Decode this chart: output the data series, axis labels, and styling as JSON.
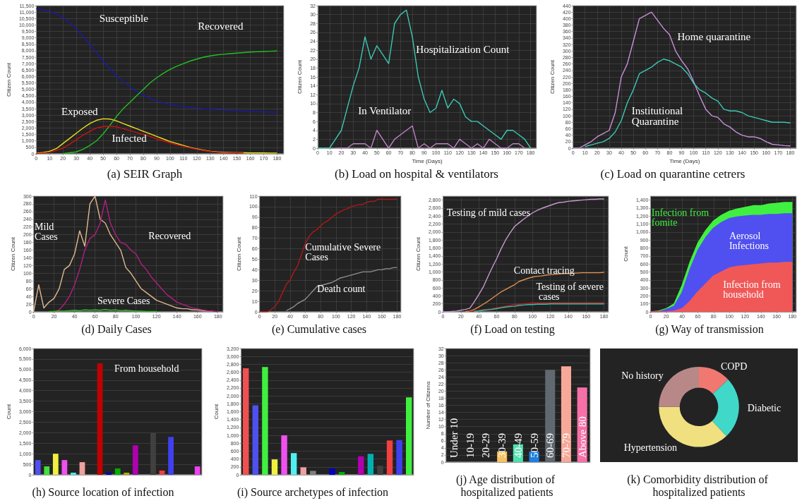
{
  "chart_data": [
    {
      "type": "line",
      "title": "(a) SEIR Graph",
      "ylabel": "Citizen Count",
      "grid": true,
      "x": [
        0,
        5,
        10,
        15,
        20,
        25,
        30,
        35,
        40,
        45,
        50,
        55,
        60,
        65,
        70,
        75,
        80,
        85,
        90,
        95,
        100,
        105,
        110,
        115,
        120,
        125,
        130,
        135,
        140,
        145,
        150,
        155,
        160,
        165,
        170,
        175,
        180
      ],
      "xlim": [
        0,
        185
      ],
      "xticks": [
        0,
        10,
        20,
        30,
        40,
        50,
        60,
        70,
        80,
        90,
        100,
        110,
        120,
        130,
        140,
        150,
        160,
        170,
        180
      ],
      "ylim": [
        0,
        11500
      ],
      "yticks": [
        0,
        500,
        {
          "value": 1000,
          "label": "1,000"
        },
        {
          "value": 1500,
          "label": "1,500"
        },
        {
          "value": 2000,
          "label": "2,000"
        },
        {
          "value": 2500,
          "label": "2,500"
        },
        {
          "value": 3000,
          "label": "3,000"
        },
        {
          "value": 3500,
          "label": "3,500"
        },
        {
          "value": 4000,
          "label": "4,000"
        },
        {
          "value": 4500,
          "label": "4,500"
        },
        {
          "value": 5000,
          "label": "5,000"
        },
        {
          "value": 5500,
          "label": "5,500"
        },
        {
          "value": 6000,
          "label": "6,000"
        },
        {
          "value": 6500,
          "label": "6,500"
        },
        {
          "value": 7000,
          "label": "7,000"
        },
        {
          "value": 7500,
          "label": "7,500"
        },
        {
          "value": 8000,
          "label": "8,000"
        },
        {
          "value": 8500,
          "label": "8,500"
        },
        {
          "value": 9000,
          "label": "9,000"
        },
        {
          "value": 9500,
          "label": "9,500"
        },
        {
          "value": 10000,
          "label": "10,000"
        },
        {
          "value": 10500,
          "label": "10,500"
        },
        {
          "value": 11000,
          "label": "11,000"
        },
        {
          "value": 11500,
          "label": "11,500"
        }
      ],
      "series": [
        {
          "name": "Susceptible",
          "color": "#1a1aa8",
          "values": [
            11250,
            11150,
            11050,
            10900,
            10550,
            10200,
            9700,
            9100,
            8500,
            7850,
            7200,
            6600,
            6050,
            5600,
            5200,
            4850,
            4550,
            4300,
            4100,
            3950,
            3850,
            3750,
            3650,
            3600,
            3550,
            3500,
            3450,
            3420,
            3400,
            3380,
            3350,
            3320,
            3300,
            3280,
            3260,
            3240,
            3220
          ]
        },
        {
          "name": "Recovered",
          "color": "#22c022",
          "values": [
            null,
            null,
            null,
            null,
            20,
            80,
            150,
            350,
            650,
            1000,
            1550,
            2200,
            2900,
            3500,
            4000,
            4500,
            5000,
            5500,
            5900,
            6250,
            6550,
            6800,
            7000,
            7200,
            7350,
            7500,
            7600,
            7680,
            7730,
            7780,
            7820,
            7860,
            7900,
            7920,
            7940,
            7960,
            7980
          ]
        },
        {
          "name": "Exposed",
          "color": "#e8e020",
          "values": [
            50,
            100,
            200,
            400,
            800,
            1200,
            1600,
            2000,
            2350,
            2600,
            2720,
            2700,
            2550,
            2350,
            2150,
            1950,
            1750,
            1550,
            1350,
            1150,
            950,
            800,
            650,
            500,
            380,
            280,
            200,
            150,
            120,
            100,
            90,
            80,
            70,
            70,
            70,
            60,
            60
          ]
        },
        {
          "name": "Infected",
          "color": "#cc1010",
          "values": [
            20,
            60,
            130,
            250,
            450,
            750,
            1100,
            1450,
            1750,
            2000,
            2120,
            2150,
            2100,
            1950,
            1800,
            1650,
            1500,
            1350,
            1150,
            1000,
            850,
            700,
            580,
            450,
            350,
            250,
            180,
            130,
            100,
            80,
            70,
            60,
            null,
            null,
            null,
            null,
            null
          ]
        }
      ]
    },
    {
      "type": "line",
      "title": "(b) Load on hospital & ventilators",
      "ylabel": "Citizen Count",
      "xlabel": "Time (Days)",
      "grid": true,
      "x": [
        0,
        5,
        10,
        15,
        20,
        25,
        30,
        35,
        40,
        45,
        50,
        55,
        60,
        65,
        70,
        75,
        80,
        85,
        90,
        95,
        100,
        105,
        110,
        115,
        120,
        125,
        130,
        135,
        140,
        145,
        150,
        155,
        160,
        165,
        170,
        175,
        180
      ],
      "xlim": [
        0,
        185
      ],
      "xticks": [
        0,
        10,
        20,
        30,
        40,
        50,
        60,
        70,
        80,
        90,
        100,
        110,
        120,
        130,
        140,
        150,
        160,
        170,
        180
      ],
      "ylim": [
        0,
        32
      ],
      "yticks": [
        0,
        2,
        4,
        6,
        8,
        10,
        12,
        14,
        16,
        18,
        20,
        22,
        24,
        26,
        28,
        30,
        32
      ],
      "series": [
        {
          "name": "Hospitalization Count",
          "color": "#3cc8b4",
          "values": [
            0,
            0,
            0,
            2,
            4,
            9,
            14,
            18,
            25,
            20,
            23,
            21,
            19,
            28,
            30,
            31,
            25,
            16,
            11,
            8,
            9,
            13,
            9,
            11,
            10,
            7,
            6,
            6,
            5,
            4,
            3,
            2,
            4,
            4,
            3,
            2,
            0
          ]
        },
        {
          "name": "In Ventilator",
          "color": "#c080c8",
          "values": [
            null,
            null,
            null,
            0,
            0,
            0,
            1,
            1,
            1,
            0,
            4,
            2,
            0,
            2,
            3,
            4,
            5,
            0,
            1,
            0,
            1,
            1,
            1,
            0,
            2,
            1,
            0,
            1,
            0,
            2,
            1,
            0,
            0,
            1,
            1,
            0,
            null
          ]
        }
      ]
    },
    {
      "type": "line",
      "title": "(c) Load on quarantine cetrers",
      "ylabel": "Citizen Count",
      "xlabel": "Time (Days)",
      "grid": true,
      "x": [
        0,
        5,
        10,
        15,
        20,
        25,
        30,
        35,
        40,
        45,
        50,
        55,
        60,
        65,
        70,
        75,
        80,
        85,
        90,
        95,
        100,
        105,
        110,
        115,
        120,
        125,
        130,
        135,
        140,
        145,
        150,
        155,
        160,
        165,
        170,
        175,
        180
      ],
      "xlim": [
        0,
        185
      ],
      "xticks": [
        0,
        10,
        20,
        30,
        40,
        50,
        60,
        70,
        80,
        90,
        100,
        110,
        120,
        130,
        140,
        150,
        160,
        170,
        180
      ],
      "ylim": [
        0,
        440
      ],
      "yticks": [
        0,
        20,
        40,
        60,
        80,
        100,
        120,
        140,
        160,
        180,
        200,
        220,
        240,
        260,
        280,
        300,
        320,
        340,
        360,
        380,
        400,
        420,
        440
      ],
      "series": [
        {
          "name": "Home quarantine",
          "color": "#c890d8",
          "values": [
            0,
            0,
            10,
            20,
            35,
            45,
            55,
            110,
            220,
            260,
            330,
            400,
            410,
            420,
            395,
            370,
            350,
            300,
            270,
            245,
            205,
            160,
            120,
            100,
            95,
            75,
            65,
            50,
            40,
            35,
            35,
            30,
            20,
            12,
            10,
            8,
            7
          ]
        },
        {
          "name": "Institutional Quarantine",
          "color": "#3cc8b4",
          "values": [
            null,
            null,
            5,
            10,
            15,
            20,
            30,
            50,
            85,
            140,
            180,
            230,
            240,
            250,
            265,
            275,
            270,
            260,
            250,
            230,
            200,
            180,
            170,
            155,
            145,
            120,
            115,
            115,
            110,
            100,
            95,
            90,
            85,
            80,
            80,
            80,
            78
          ]
        }
      ]
    },
    {
      "type": "line",
      "title": "(d) Daily Cases",
      "ylabel": "Citizen Count",
      "grid": true,
      "x": [
        0,
        5,
        10,
        15,
        20,
        25,
        30,
        35,
        40,
        45,
        50,
        55,
        60,
        65,
        70,
        75,
        80,
        85,
        90,
        95,
        100,
        105,
        110,
        115,
        120,
        125,
        130,
        135,
        140,
        145,
        150,
        155,
        160,
        165,
        170,
        175,
        180
      ],
      "xlim": [
        0,
        185
      ],
      "xticks": [
        0,
        20,
        40,
        60,
        80,
        100,
        120,
        140,
        160,
        180
      ],
      "ylim": [
        0,
        300
      ],
      "yticks": [
        0,
        20,
        40,
        60,
        80,
        100,
        120,
        140,
        160,
        180,
        200,
        220,
        240,
        260,
        280,
        300
      ],
      "series": [
        {
          "name": "Mild Cases",
          "color": "#e0b890",
          "values": [
            0,
            70,
            10,
            25,
            35,
            60,
            110,
            120,
            150,
            210,
            170,
            280,
            300,
            240,
            230,
            200,
            180,
            160,
            115,
            100,
            80,
            60,
            50,
            40,
            30,
            25,
            20,
            15,
            10,
            8,
            8,
            5,
            5,
            3,
            2,
            2,
            null
          ]
        },
        {
          "name": "Recovered",
          "color": "#b02080",
          "values": [
            null,
            null,
            null,
            null,
            0,
            5,
            20,
            40,
            70,
            110,
            160,
            190,
            200,
            230,
            290,
            230,
            200,
            180,
            175,
            160,
            150,
            125,
            110,
            90,
            75,
            60,
            45,
            35,
            25,
            20,
            15,
            10,
            8,
            5,
            3,
            2,
            0
          ]
        },
        {
          "name": "Severe Cases",
          "color": "#30c030",
          "values": [
            null,
            null,
            null,
            1,
            1,
            2,
            2,
            3,
            4,
            3,
            5,
            4,
            5,
            4,
            6,
            4,
            5,
            3,
            4,
            3,
            2,
            2,
            1,
            1,
            1,
            null,
            null,
            null,
            null,
            null,
            null,
            null,
            null,
            null,
            null,
            null,
            null
          ]
        }
      ]
    },
    {
      "type": "line",
      "title": "(e) Cumulative cases",
      "ylabel": "Citizen Count",
      "grid": true,
      "x": [
        0,
        5,
        10,
        15,
        20,
        25,
        30,
        35,
        40,
        45,
        50,
        55,
        60,
        65,
        70,
        75,
        80,
        85,
        90,
        95,
        100,
        105,
        110,
        115,
        120,
        125,
        130,
        135,
        140,
        145,
        150,
        155,
        160,
        165,
        170,
        175,
        180
      ],
      "xlim": [
        0,
        185
      ],
      "xticks": [
        0,
        20,
        40,
        60,
        80,
        100,
        120,
        140,
        160,
        180
      ],
      "ylim": [
        0,
        110
      ],
      "yticks": [
        0,
        10,
        20,
        30,
        40,
        50,
        60,
        70,
        80,
        90,
        100,
        110
      ],
      "series": [
        {
          "name": "Cumulative Severe Cases",
          "color": "#b01818",
          "values": [
            0,
            0,
            0,
            2,
            5,
            10,
            18,
            26,
            30,
            38,
            44,
            55,
            65,
            72,
            76,
            78,
            82,
            85,
            87,
            90,
            93,
            95,
            97,
            98,
            100,
            101,
            102,
            102,
            104,
            105,
            105,
            107,
            107,
            107,
            107,
            107,
            107
          ]
        },
        {
          "name": "Death count",
          "color": "#909090",
          "values": [
            null,
            null,
            null,
            null,
            null,
            null,
            null,
            1,
            3,
            5,
            8,
            10,
            12,
            16,
            20,
            24,
            25,
            26,
            27,
            28,
            30,
            32,
            33,
            34,
            35,
            36,
            37,
            38,
            38,
            38,
            39,
            40,
            40,
            41,
            41,
            42,
            42
          ]
        }
      ]
    },
    {
      "type": "line",
      "title": "(f) Load on testing",
      "ylabel": "Citizen Count",
      "grid": true,
      "x": [
        0,
        5,
        10,
        15,
        20,
        25,
        30,
        35,
        40,
        45,
        50,
        55,
        60,
        65,
        70,
        75,
        80,
        85,
        90,
        95,
        100,
        105,
        110,
        115,
        120,
        125,
        130,
        135,
        140,
        145,
        150,
        155,
        160,
        165,
        170,
        175,
        180
      ],
      "xlim": [
        0,
        185
      ],
      "xticks": [
        0,
        20,
        40,
        60,
        80,
        100,
        120,
        140,
        160,
        180
      ],
      "ylim": [
        0,
        2900
      ],
      "yticks": [
        0,
        200,
        400,
        600,
        800,
        {
          "value": 1000,
          "label": "1,000"
        },
        {
          "value": 1200,
          "label": "1,200"
        },
        {
          "value": 1400,
          "label": "1,400"
        },
        {
          "value": 1600,
          "label": "1,600"
        },
        {
          "value": 1800,
          "label": "1,800"
        },
        {
          "value": 2000,
          "label": "2,000"
        },
        {
          "value": 2200,
          "label": "2,200"
        },
        {
          "value": 2400,
          "label": "2,400"
        },
        {
          "value": 2600,
          "label": "2,600"
        },
        {
          "value": 2800,
          "label": "2,800"
        }
      ],
      "series": [
        {
          "name": "Testing of mild cases",
          "color": "#c898d0",
          "values": [
            0,
            0,
            10,
            20,
            40,
            60,
            90,
            250,
            430,
            620,
            870,
            1110,
            1330,
            1580,
            1800,
            1980,
            2140,
            2230,
            2320,
            2400,
            2480,
            2540,
            2590,
            2630,
            2670,
            2710,
            2740,
            2750,
            2770,
            2780,
            2790,
            2800,
            2810,
            2820,
            2820,
            2830,
            2830
          ]
        },
        {
          "name": "Contact tracing",
          "color": "#e09050",
          "values": [
            null,
            null,
            null,
            null,
            null,
            10,
            20,
            60,
            120,
            190,
            260,
            340,
            420,
            500,
            560,
            620,
            680,
            760,
            800,
            840,
            870,
            890,
            900,
            920,
            930,
            940,
            950,
            960,
            960,
            970,
            970,
            980,
            980,
            980,
            980,
            980,
            990
          ]
        },
        {
          "name": "Testing of severe cases",
          "color": "#c02020",
          "values": [
            null,
            null,
            null,
            null,
            null,
            null,
            10,
            20,
            30,
            50,
            60,
            80,
            100,
            120,
            140,
            160,
            180,
            190,
            200,
            210,
            220,
            220,
            220,
            220,
            220,
            230,
            230,
            230,
            230,
            230,
            230,
            230,
            230,
            230,
            230,
            230,
            230
          ]
        },
        {
          "color": "#30c0b0",
          "values": [
            null,
            null,
            null,
            null,
            null,
            null,
            null,
            10,
            20,
            40,
            50,
            60,
            80,
            100,
            120,
            130,
            140,
            160,
            170,
            180,
            180,
            190,
            190,
            190,
            200,
            200,
            200,
            200,
            200,
            200,
            200,
            200,
            200,
            200,
            200,
            200,
            200
          ]
        }
      ]
    },
    {
      "type": "area",
      "title": "(g) Way of transmission",
      "ylabel": "Count",
      "grid": true,
      "stacked": true,
      "x": [
        0,
        10,
        20,
        30,
        40,
        50,
        60,
        70,
        80,
        90,
        100,
        110,
        120,
        130,
        140,
        150,
        160,
        170,
        180
      ],
      "xlim": [
        0,
        185
      ],
      "xticks": [
        0,
        20,
        40,
        60,
        80,
        100,
        120,
        140,
        160,
        180
      ],
      "ylim": [
        0,
        1450
      ],
      "yticks": [
        0,
        100,
        200,
        300,
        400,
        500,
        600,
        700,
        800,
        900,
        {
          "value": 1000,
          "label": "1,000"
        },
        {
          "value": 1100,
          "label": "1,100"
        },
        {
          "value": 1200,
          "label": "1,200"
        },
        {
          "value": 1300,
          "label": "1,300"
        },
        {
          "value": 1400,
          "label": "1,400"
        }
      ],
      "series": [
        {
          "name": "Infection from household",
          "color": "#f05858",
          "values": [
            0,
            0,
            0,
            10,
            40,
            130,
            250,
            350,
            450,
            500,
            550,
            570,
            580,
            590,
            600,
            610,
            610,
            620,
            620
          ]
        },
        {
          "name": "Aerosol Infections",
          "color": "#5050f0",
          "values": [
            0,
            0,
            30,
            60,
            200,
            400,
            520,
            580,
            600,
            620,
            620,
            620,
            620,
            620,
            610,
            610,
            610,
            610,
            610
          ]
        },
        {
          "name": "Infection from fomite",
          "color": "#40f040",
          "values": [
            0,
            10,
            10,
            30,
            90,
            90,
            90,
            90,
            90,
            90,
            90,
            100,
            110,
            120,
            120,
            130,
            140,
            140,
            140
          ]
        }
      ]
    },
    {
      "type": "bar",
      "title": "(h) Source location of infection",
      "ylabel": "Count",
      "grid": "y",
      "annotations": [
        "From household"
      ],
      "categories": [
        null,
        null,
        null,
        null,
        null,
        null,
        null,
        null,
        null,
        null,
        null,
        null,
        null,
        null,
        null,
        null,
        null,
        null,
        null
      ],
      "values": [
        700,
        400,
        1000,
        700,
        100,
        600,
        0,
        5300,
        100,
        300,
        100,
        1400,
        0,
        2000,
        200,
        1800,
        0,
        0,
        400
      ],
      "colors": [
        "#5050f0",
        "#40e040",
        "#f0f040",
        "#f050f0",
        "#40f0f0",
        "#f0a0a0",
        "#808080",
        "#c00000",
        "#0000c0",
        "#00b000",
        "#b0b000",
        "#b000b0",
        "#404040",
        "#404040",
        "#f04040",
        "#4040f0",
        "#40f040",
        "#808080",
        "#f040f0"
      ],
      "ylim": [
        0,
        6000
      ],
      "yticks": [
        0,
        500,
        {
          "value": 1000,
          "label": "1,000"
        },
        {
          "value": 1500,
          "label": "1,500"
        },
        {
          "value": 2000,
          "label": "2,000"
        },
        {
          "value": 2500,
          "label": "2,500"
        },
        {
          "value": 3000,
          "label": "3,000"
        },
        {
          "value": 3500,
          "label": "3,500"
        },
        {
          "value": 4000,
          "label": "4,000"
        },
        {
          "value": 4500,
          "label": "4,500"
        },
        {
          "value": 5000,
          "label": "5,000"
        },
        {
          "value": 5500,
          "label": "5,500"
        },
        {
          "value": 6000,
          "label": "6,000"
        }
      ]
    },
    {
      "type": "bar",
      "title": "(i) Source archetypes of infection",
      "ylabel": "Count",
      "grid": "y",
      "categories": [
        null,
        null,
        null,
        null,
        null,
        null,
        null,
        null,
        null,
        null,
        null,
        null,
        null,
        null,
        null,
        null,
        null,
        null
      ],
      "values": [
        2700,
        1760,
        2730,
        390,
        1000,
        550,
        190,
        100,
        0,
        160,
        70,
        0,
        470,
        530,
        230,
        870,
        880,
        1960
      ],
      "colors": [
        "#f05050",
        "#5050f0",
        "#40f040",
        "#f0f040",
        "#f050f0",
        "#50f0f0",
        "#f0a0a0",
        "#808080",
        "#404040",
        "#0000c0",
        "#00b000",
        "#404040",
        "#b000b0",
        "#00b0b0",
        "#404040",
        "#f04040",
        "#4040f0",
        "#40f040"
      ],
      "ylim": [
        0,
        3200
      ],
      "yticks": [
        0,
        200,
        400,
        600,
        800,
        {
          "value": 1000,
          "label": "1,000"
        },
        {
          "value": 1200,
          "label": "1,200"
        },
        {
          "value": 1400,
          "label": "1,400"
        },
        {
          "value": 1600,
          "label": "1,600"
        },
        {
          "value": 1800,
          "label": "1,800"
        },
        {
          "value": 2000,
          "label": "2,000"
        },
        {
          "value": 2200,
          "label": "2,200"
        },
        {
          "value": 2400,
          "label": "2,400"
        },
        {
          "value": 2600,
          "label": "2,600"
        },
        {
          "value": 2800,
          "label": "2,800"
        },
        {
          "value": 3000,
          "label": "3,000"
        },
        {
          "value": 3200,
          "label": "3,200"
        }
      ]
    },
    {
      "type": "bar",
      "title": "(j) Age distribution of hospitalized patients",
      "ylabel": "Number of Citizens",
      "grid": "y",
      "categories": [
        "Under 10",
        "10-19",
        "20-29",
        "30-39",
        "40-49",
        "50-59",
        "60-69",
        "70-79",
        "Above 80"
      ],
      "values": [
        0,
        0,
        0,
        3,
        5,
        3,
        26,
        27,
        21
      ],
      "colors": [
        "#f8c060",
        "#f8c060",
        "#f8c060",
        "#f8c060",
        "#50e0b0",
        "#2080e0",
        "#606870",
        "#f8a898",
        "#f870a8"
      ],
      "ylim": [
        0,
        32
      ],
      "yticks": [
        0,
        2,
        4,
        6,
        8,
        10,
        12,
        14,
        16,
        18,
        20,
        22,
        24,
        26,
        28,
        30,
        32
      ]
    },
    {
      "type": "donut",
      "title": "(k) Comorbidity distribution of hospitalized patients",
      "categories": [
        "COPD",
        "Diabetic",
        "Hypertension",
        "No history"
      ],
      "values": [
        13,
        25,
        37,
        25
      ],
      "colors": [
        "#f07870",
        "#40d8c8",
        "#f0e080",
        "#b88888"
      ]
    }
  ]
}
